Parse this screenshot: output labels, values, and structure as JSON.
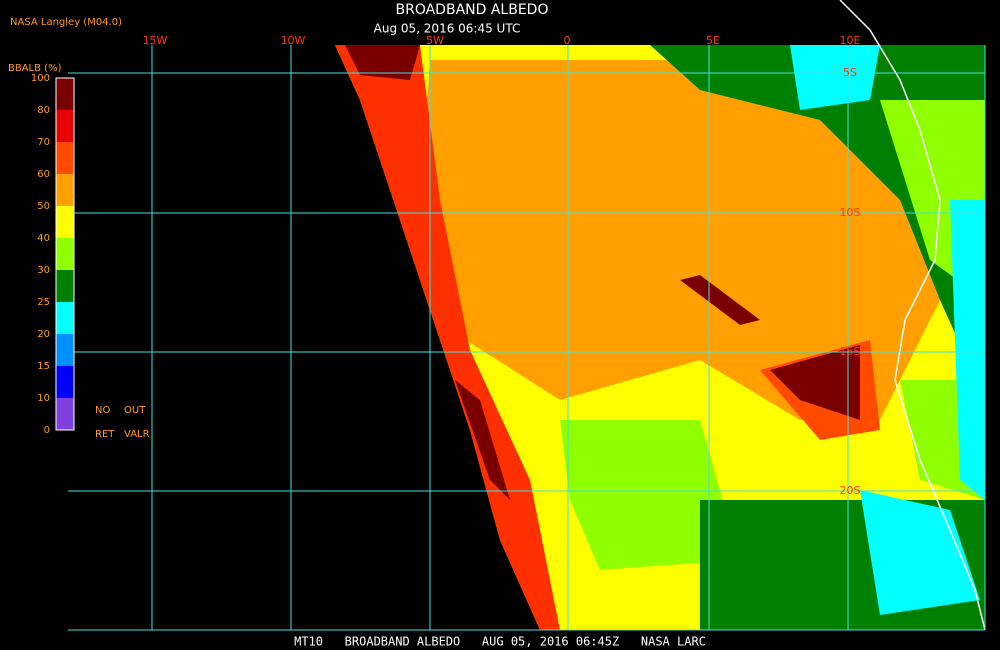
{
  "header": {
    "source": "NASA Langley (M04.0)",
    "title": "BROADBAND ALBEDO",
    "time": "Aug 05, 2016 06:45 UTC"
  },
  "colorbar": {
    "label": "BBALB (%)",
    "ticks": [
      100,
      80,
      70,
      60,
      50,
      40,
      30,
      25,
      20,
      15,
      10,
      0
    ],
    "colors": [
      "#7a0000",
      "#e80000",
      "#ff4a00",
      "#ffa000",
      "#ffff00",
      "#90ff00",
      "#008000",
      "#00ffff",
      "#0090ff",
      "#0000ff",
      "#8040e0"
    ]
  },
  "legend_notes": [
    "NO",
    "OUT",
    "RET",
    "VALR"
  ],
  "longitude_labels": [
    "15W",
    "10W",
    "5W",
    "0",
    "5E",
    "10E"
  ],
  "latitude_labels": [
    "5S",
    "10S",
    "15S",
    "20S"
  ],
  "footer": "MT10   BROADBAND ALBEDO   AUG 05, 2016 06:45Z   NASA LARC"
}
